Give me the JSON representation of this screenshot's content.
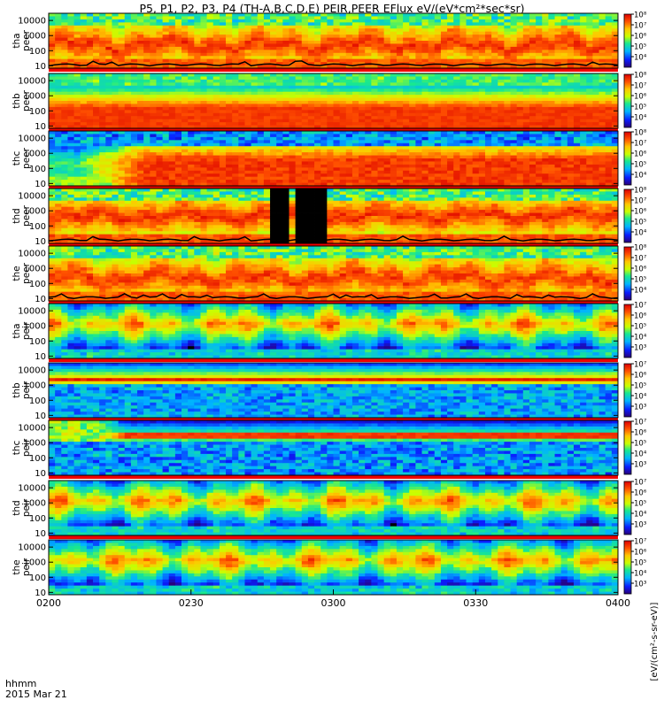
{
  "chart_data": {
    "type": "heatmap",
    "title": "P5, P1, P2, P3, P4 (TH-A,B,C,D,E) PEIR,PEER EFlux eV/(eV*cm²*sec*sr)",
    "time_axis": {
      "label_line1": "hhmm",
      "label_line2": "2015 Mar 21",
      "range": [
        "0200",
        "0400"
      ],
      "ticks": [
        "0200",
        "0230",
        "0300",
        "0330",
        "0400"
      ]
    },
    "energy_axis": {
      "scale": "log",
      "ylim_eV": [
        7,
        30000
      ],
      "ticks": [
        "10",
        "100",
        "1000",
        "10000"
      ]
    },
    "colorbar_unit_label": "[eV/(cm²-s-sr-eV)]",
    "panels": [
      {
        "probe": "tha",
        "species": "peer",
        "label_top": "tha",
        "label_bottom": "peer",
        "cbar_ticks": [
          "10⁴",
          "10⁵",
          "10⁶",
          "10⁷",
          "10⁸"
        ],
        "cbar_exp_range": [
          3,
          8
        ],
        "pattern": "electron-variable",
        "has_sc_potential_line": true
      },
      {
        "probe": "thb",
        "species": "peer",
        "label_top": "thb",
        "label_bottom": "peer",
        "cbar_ticks": [
          "10⁴",
          "10⁵",
          "10⁶",
          "10⁷",
          "10⁸"
        ],
        "cbar_exp_range": [
          3,
          8
        ],
        "pattern": "electron-steady",
        "has_sc_potential_line": false
      },
      {
        "probe": "thc",
        "species": "peer",
        "label_top": "thc",
        "label_bottom": "peer",
        "cbar_ticks": [
          "10⁴",
          "10⁵",
          "10⁶",
          "10⁷",
          "10⁸"
        ],
        "cbar_exp_range": [
          3,
          8
        ],
        "pattern": "electron-onset",
        "has_sc_potential_line": false
      },
      {
        "probe": "thd",
        "species": "peer",
        "label_top": "thd",
        "label_bottom": "peer",
        "cbar_ticks": [
          "10⁴",
          "10⁵",
          "10⁶",
          "10⁷",
          "10⁸"
        ],
        "cbar_exp_range": [
          3,
          8
        ],
        "pattern": "electron-variable-gaps",
        "has_sc_potential_line": true,
        "data_gaps": [
          [
            0.394,
            0.424
          ],
          [
            0.436,
            0.488
          ]
        ]
      },
      {
        "probe": "the",
        "species": "peer",
        "label_top": "the",
        "label_bottom": "peer",
        "cbar_ticks": [
          "10⁴",
          "10⁵",
          "10⁶",
          "10⁷",
          "10⁸"
        ],
        "cbar_exp_range": [
          3,
          8
        ],
        "pattern": "electron-variable",
        "has_sc_potential_line": true
      },
      {
        "probe": "tha",
        "species": "peir",
        "label_top": "tha",
        "label_bottom": "peir",
        "cbar_ticks": [
          "10³",
          "10⁴",
          "10⁵",
          "10⁶",
          "10⁷"
        ],
        "cbar_exp_range": [
          2,
          7
        ],
        "pattern": "ion-variable",
        "has_sc_potential_line": false
      },
      {
        "probe": "thb",
        "species": "peir",
        "label_top": "thb",
        "label_bottom": "peir",
        "cbar_ticks": [
          "10³",
          "10⁴",
          "10⁵",
          "10⁶",
          "10⁷"
        ],
        "cbar_exp_range": [
          2,
          7
        ],
        "pattern": "ion-band",
        "has_sc_potential_line": false
      },
      {
        "probe": "thc",
        "species": "peir",
        "label_top": "thc",
        "label_bottom": "peir",
        "cbar_ticks": [
          "10³",
          "10⁴",
          "10⁵",
          "10⁶",
          "10⁷"
        ],
        "cbar_exp_range": [
          2,
          7
        ],
        "pattern": "ion-band-onset",
        "has_sc_potential_line": false
      },
      {
        "probe": "thd",
        "species": "peir",
        "label_top": "thd",
        "label_bottom": "peir",
        "cbar_ticks": [
          "10³",
          "10⁴",
          "10⁵",
          "10⁶",
          "10⁷"
        ],
        "cbar_exp_range": [
          2,
          7
        ],
        "pattern": "ion-variable",
        "has_sc_potential_line": false
      },
      {
        "probe": "the",
        "species": "peir",
        "label_top": "the",
        "label_bottom": "peir",
        "cbar_ticks": [
          "10³",
          "10⁴",
          "10⁵",
          "10⁶",
          "10⁷"
        ],
        "cbar_exp_range": [
          2,
          7
        ],
        "pattern": "ion-variable",
        "has_sc_potential_line": false
      }
    ]
  }
}
